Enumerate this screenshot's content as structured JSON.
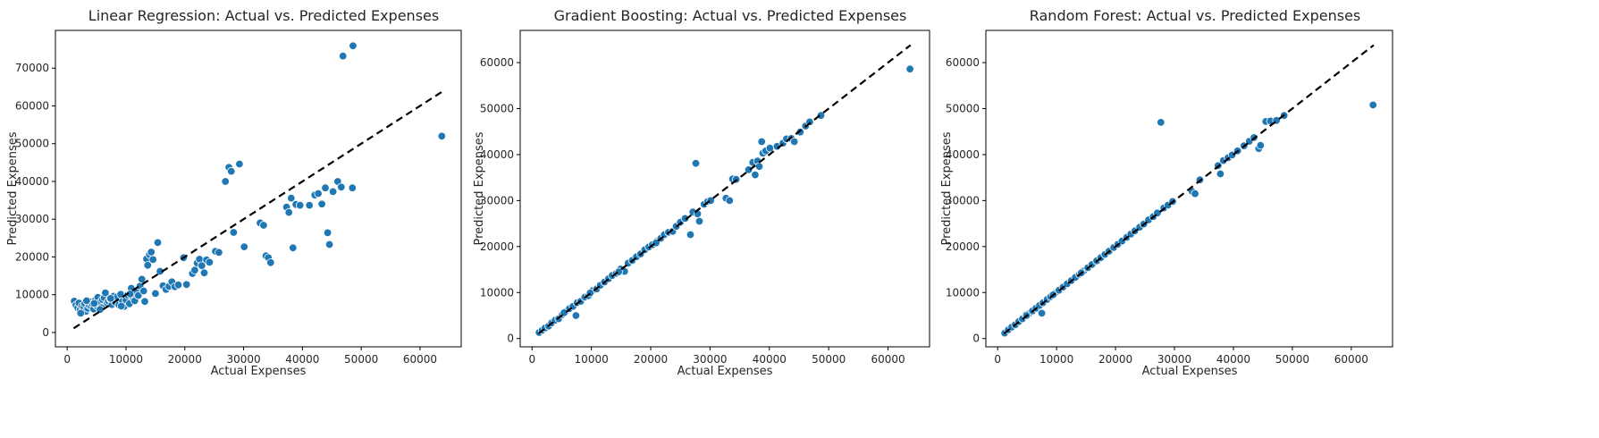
{
  "chart_data": [
    {
      "type": "scatter",
      "title": "Linear Regression: Actual vs. Predicted Expenses",
      "xlabel": "Actual Expenses",
      "ylabel": "Predicted Expenses",
      "xlim": [
        -2000,
        67000
      ],
      "ylim": [
        -3800,
        80000
      ],
      "xticks": [
        0,
        10000,
        20000,
        30000,
        40000,
        50000,
        60000
      ],
      "yticks": [
        0,
        10000,
        20000,
        30000,
        40000,
        50000,
        60000,
        70000
      ],
      "reference_line": [
        [
          1100,
          1100
        ],
        [
          63800,
          63800
        ]
      ],
      "point_color": "#1f77b4",
      "points": [
        [
          1200,
          8300
        ],
        [
          1500,
          7200
        ],
        [
          1800,
          6500
        ],
        [
          2000,
          7800
        ],
        [
          2200,
          6000
        ],
        [
          2500,
          7000
        ],
        [
          2800,
          6800
        ],
        [
          3000,
          7600
        ],
        [
          3200,
          5600
        ],
        [
          3500,
          6400
        ],
        [
          3700,
          7300
        ],
        [
          3900,
          8100
        ],
        [
          4100,
          6900
        ],
        [
          4300,
          7500
        ],
        [
          4500,
          6200
        ],
        [
          4800,
          8500
        ],
        [
          5000,
          7100
        ],
        [
          5200,
          9300
        ],
        [
          5500,
          7800
        ],
        [
          5800,
          6600
        ],
        [
          6000,
          8700
        ],
        [
          6300,
          9200
        ],
        [
          6500,
          10500
        ],
        [
          6800,
          7800
        ],
        [
          7000,
          8300
        ],
        [
          7300,
          8900
        ],
        [
          7600,
          7400
        ],
        [
          7900,
          9600
        ],
        [
          8200,
          8000
        ],
        [
          8500,
          9400
        ],
        [
          8800,
          7300
        ],
        [
          9100,
          10100
        ],
        [
          9400,
          8200
        ],
        [
          9700,
          6900
        ],
        [
          10000,
          8600
        ],
        [
          10300,
          9900
        ],
        [
          10600,
          7600
        ],
        [
          10900,
          11700
        ],
        [
          11200,
          9200
        ],
        [
          11500,
          8400
        ],
        [
          11800,
          10600
        ],
        [
          12100,
          9800
        ],
        [
          12400,
          12300
        ],
        [
          12700,
          14100
        ],
        [
          13000,
          11000
        ],
        [
          13200,
          8200
        ],
        [
          13500,
          19500
        ],
        [
          13700,
          17800
        ],
        [
          14000,
          20600
        ],
        [
          14300,
          21300
        ],
        [
          14600,
          19300
        ],
        [
          15000,
          10300
        ],
        [
          15400,
          23800
        ],
        [
          15800,
          16200
        ],
        [
          16300,
          12400
        ],
        [
          16800,
          11400
        ],
        [
          17300,
          12200
        ],
        [
          17800,
          13400
        ],
        [
          18300,
          12100
        ],
        [
          18900,
          12600
        ],
        [
          19800,
          19800
        ],
        [
          20300,
          12700
        ],
        [
          21300,
          15600
        ],
        [
          21700,
          16500
        ],
        [
          22100,
          18400
        ],
        [
          22500,
          19400
        ],
        [
          22900,
          17700
        ],
        [
          23300,
          15800
        ],
        [
          23700,
          19200
        ],
        [
          24200,
          18600
        ],
        [
          25200,
          21500
        ],
        [
          25800,
          21200
        ],
        [
          26900,
          40000
        ],
        [
          27500,
          43700
        ],
        [
          27900,
          42700
        ],
        [
          28300,
          26500
        ],
        [
          29300,
          44600
        ],
        [
          30100,
          22700
        ],
        [
          32800,
          29000
        ],
        [
          33400,
          28400
        ],
        [
          33800,
          20300
        ],
        [
          34200,
          19800
        ],
        [
          34600,
          18500
        ],
        [
          37300,
          33200
        ],
        [
          37700,
          31800
        ],
        [
          38100,
          35600
        ],
        [
          38400,
          22400
        ],
        [
          38900,
          33900
        ],
        [
          39600,
          33700
        ],
        [
          41200,
          33700
        ],
        [
          42100,
          36400
        ],
        [
          42700,
          36800
        ],
        [
          43300,
          34000
        ],
        [
          43900,
          38300
        ],
        [
          44300,
          26400
        ],
        [
          44600,
          23300
        ],
        [
          45200,
          37300
        ],
        [
          46000,
          40000
        ],
        [
          46600,
          38500
        ],
        [
          46900,
          73200
        ],
        [
          48500,
          38300
        ],
        [
          48600,
          75900
        ],
        [
          63700,
          52000
        ],
        [
          2300,
          5100
        ],
        [
          3300,
          8400
        ],
        [
          4600,
          7700
        ],
        [
          5600,
          6100
        ],
        [
          7400,
          9000
        ],
        [
          9200,
          7000
        ],
        [
          10700,
          10200
        ]
      ]
    },
    {
      "type": "scatter",
      "title": "Gradient Boosting: Actual vs. Predicted Expenses",
      "xlabel": "Actual Expenses",
      "ylabel": "Predicted Expenses",
      "xlim": [
        -2000,
        67000
      ],
      "ylim": [
        -1800,
        67000
      ],
      "xticks": [
        0,
        10000,
        20000,
        30000,
        40000,
        50000,
        60000
      ],
      "yticks": [
        0,
        10000,
        20000,
        30000,
        40000,
        50000,
        60000
      ],
      "reference_line": [
        [
          1100,
          1100
        ],
        [
          63800,
          63800
        ]
      ],
      "point_color": "#1f77b4",
      "points": [
        [
          1200,
          1300
        ],
        [
          1700,
          1800
        ],
        [
          2200,
          2300
        ],
        [
          2800,
          2700
        ],
        [
          3300,
          3400
        ],
        [
          3900,
          4000
        ],
        [
          4500,
          4300
        ],
        [
          5100,
          5200
        ],
        [
          5700,
          5900
        ],
        [
          6300,
          6500
        ],
        [
          6900,
          7000
        ],
        [
          7400,
          5000
        ],
        [
          7600,
          7800
        ],
        [
          8200,
          8100
        ],
        [
          8900,
          9000
        ],
        [
          9500,
          9300
        ],
        [
          10200,
          10400
        ],
        [
          10900,
          10800
        ],
        [
          11500,
          11600
        ],
        [
          12200,
          12300
        ],
        [
          12900,
          13000
        ],
        [
          13500,
          13700
        ],
        [
          14200,
          14200
        ],
        [
          14900,
          15100
        ],
        [
          15600,
          14600
        ],
        [
          16200,
          16400
        ],
        [
          16900,
          17000
        ],
        [
          17600,
          17800
        ],
        [
          18300,
          18400
        ],
        [
          19000,
          19300
        ],
        [
          19700,
          19900
        ],
        [
          20300,
          20400
        ],
        [
          21000,
          21100
        ],
        [
          21700,
          21800
        ],
        [
          22300,
          22600
        ],
        [
          23000,
          23100
        ],
        [
          23700,
          23300
        ],
        [
          24300,
          24400
        ],
        [
          25000,
          25300
        ],
        [
          25800,
          26100
        ],
        [
          26700,
          22600
        ],
        [
          27100,
          27500
        ],
        [
          27600,
          38100
        ],
        [
          27900,
          27100
        ],
        [
          28200,
          25500
        ],
        [
          29000,
          29200
        ],
        [
          29600,
          29800
        ],
        [
          32700,
          30500
        ],
        [
          33300,
          30000
        ],
        [
          33800,
          34700
        ],
        [
          34400,
          34600
        ],
        [
          36500,
          36700
        ],
        [
          37200,
          38300
        ],
        [
          37600,
          35600
        ],
        [
          38000,
          38600
        ],
        [
          38300,
          37400
        ],
        [
          38700,
          42800
        ],
        [
          38900,
          40300
        ],
        [
          39400,
          40800
        ],
        [
          40100,
          41400
        ],
        [
          41300,
          41800
        ],
        [
          42300,
          42500
        ],
        [
          42900,
          43400
        ],
        [
          43700,
          43500
        ],
        [
          44200,
          42800
        ],
        [
          45200,
          44900
        ],
        [
          46100,
          46200
        ],
        [
          46800,
          47100
        ],
        [
          48700,
          48500
        ],
        [
          63700,
          58600
        ],
        [
          5400,
          5600
        ],
        [
          9800,
          9900
        ],
        [
          14600,
          14500
        ],
        [
          20900,
          20800
        ],
        [
          30100,
          30000
        ]
      ]
    },
    {
      "type": "scatter",
      "title": "Random Forest: Actual vs. Predicted Expenses",
      "xlabel": "Actual Expenses",
      "ylabel": "Predicted Expenses",
      "xlim": [
        -2000,
        67000
      ],
      "ylim": [
        -1800,
        67000
      ],
      "xticks": [
        0,
        10000,
        20000,
        30000,
        40000,
        50000,
        60000
      ],
      "yticks": [
        0,
        10000,
        20000,
        30000,
        40000,
        50000,
        60000
      ],
      "reference_line": [
        [
          1100,
          1100
        ],
        [
          63800,
          63800
        ]
      ],
      "point_color": "#1f77b4",
      "points": [
        [
          1200,
          1200
        ],
        [
          1800,
          1900
        ],
        [
          2400,
          2500
        ],
        [
          3000,
          3000
        ],
        [
          3600,
          3700
        ],
        [
          4200,
          4300
        ],
        [
          4800,
          5200
        ],
        [
          5300,
          5400
        ],
        [
          5900,
          6000
        ],
        [
          6500,
          6600
        ],
        [
          7100,
          7200
        ],
        [
          7500,
          5500
        ],
        [
          7700,
          7800
        ],
        [
          8400,
          8500
        ],
        [
          9000,
          9100
        ],
        [
          9700,
          9800
        ],
        [
          10400,
          10500
        ],
        [
          11100,
          11200
        ],
        [
          11800,
          11900
        ],
        [
          12500,
          12600
        ],
        [
          13200,
          13300
        ],
        [
          13900,
          14000
        ],
        [
          14600,
          14700
        ],
        [
          15300,
          15400
        ],
        [
          16000,
          16100
        ],
        [
          16800,
          16900
        ],
        [
          17500,
          17600
        ],
        [
          18200,
          18300
        ],
        [
          18900,
          19000
        ],
        [
          19700,
          19800
        ],
        [
          20400,
          20500
        ],
        [
          21100,
          21200
        ],
        [
          21900,
          22000
        ],
        [
          22600,
          22700
        ],
        [
          23300,
          23400
        ],
        [
          24100,
          24200
        ],
        [
          24800,
          24900
        ],
        [
          25600,
          25800
        ],
        [
          26400,
          26500
        ],
        [
          27100,
          27300
        ],
        [
          27700,
          47000
        ],
        [
          28200,
          28400
        ],
        [
          28900,
          29000
        ],
        [
          29700,
          29800
        ],
        [
          33000,
          32000
        ],
        [
          33500,
          31500
        ],
        [
          34300,
          34500
        ],
        [
          37400,
          37600
        ],
        [
          37800,
          35800
        ],
        [
          38300,
          38700
        ],
        [
          39100,
          39300
        ],
        [
          39800,
          39900
        ],
        [
          40700,
          40800
        ],
        [
          41800,
          41900
        ],
        [
          42700,
          42900
        ],
        [
          43500,
          43700
        ],
        [
          44300,
          41300
        ],
        [
          44600,
          42000
        ],
        [
          45500,
          47200
        ],
        [
          46300,
          47300
        ],
        [
          47300,
          47400
        ],
        [
          48600,
          48500
        ],
        [
          63700,
          50800
        ],
        [
          4900,
          5000
        ],
        [
          9400,
          9500
        ],
        [
          14200,
          14300
        ]
      ]
    }
  ]
}
